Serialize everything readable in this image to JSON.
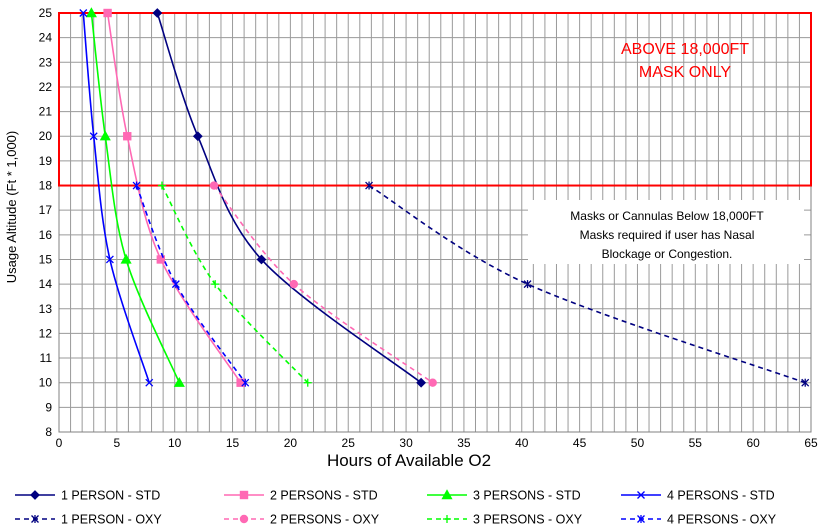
{
  "chart_data": {
    "type": "line",
    "title": "",
    "xlabel": "Hours of Available O2",
    "ylabel": "Usage Altitude (Ft * 1,000)",
    "xlim": [
      0,
      65
    ],
    "ylim": [
      8,
      25
    ],
    "x_ticks": [
      0,
      5,
      10,
      15,
      20,
      25,
      30,
      35,
      40,
      45,
      50,
      55,
      60,
      65
    ],
    "y_ticks": [
      8,
      9,
      10,
      11,
      12,
      13,
      14,
      15,
      16,
      17,
      18,
      19,
      20,
      21,
      22,
      23,
      24,
      25
    ],
    "grid": true,
    "legend_position": "bottom",
    "annotations": {
      "mask_only_line1": "ABOVE 18,000FT",
      "mask_only_line2": "MASK ONLY",
      "cannula_line1": "Masks or Cannulas Below 18,000FT",
      "cannula_line2": "Masks required if user has Nasal",
      "cannula_line3": "Blockage or Congestion."
    },
    "series": [
      {
        "name": "1 PERSON - STD",
        "color": "#000080",
        "dash": false,
        "marker": "diamond",
        "points": [
          [
            8.5,
            25
          ],
          [
            12,
            20
          ],
          [
            17.5,
            15
          ],
          [
            31.3,
            10
          ]
        ]
      },
      {
        "name": "2 PERSONS - STD",
        "color": "#ff69b4",
        "dash": false,
        "marker": "square",
        "points": [
          [
            4.2,
            25
          ],
          [
            5.9,
            20
          ],
          [
            8.8,
            15
          ],
          [
            15.7,
            10
          ]
        ]
      },
      {
        "name": "3 PERSONS - STD",
        "color": "#00ff00",
        "dash": false,
        "marker": "triangle",
        "points": [
          [
            2.8,
            25
          ],
          [
            4,
            20
          ],
          [
            5.8,
            15
          ],
          [
            10.4,
            10
          ]
        ]
      },
      {
        "name": "4 PERSONS - STD",
        "color": "#0000ff",
        "dash": false,
        "marker": "x",
        "points": [
          [
            2.1,
            25
          ],
          [
            3,
            20
          ],
          [
            4.4,
            15
          ],
          [
            7.8,
            10
          ]
        ]
      },
      {
        "name": "1 PERSON - OXY",
        "color": "#000080",
        "dash": true,
        "marker": "star",
        "points": [
          [
            26.8,
            18
          ],
          [
            40.5,
            14
          ],
          [
            64.5,
            10
          ]
        ]
      },
      {
        "name": "2 PERSONS - OXY",
        "color": "#ff69b4",
        "dash": true,
        "marker": "circle",
        "points": [
          [
            13.4,
            18
          ],
          [
            20.3,
            14
          ],
          [
            32.3,
            10
          ]
        ]
      },
      {
        "name": "3 PERSONS - OXY",
        "color": "#00ff00",
        "dash": true,
        "marker": "plus",
        "points": [
          [
            8.9,
            18
          ],
          [
            13.5,
            14
          ],
          [
            21.5,
            10
          ]
        ]
      },
      {
        "name": "4 PERSONS - OXY",
        "color": "#0000ff",
        "dash": true,
        "marker": "star",
        "points": [
          [
            6.7,
            18
          ],
          [
            10.1,
            14
          ],
          [
            16.1,
            10
          ]
        ]
      }
    ]
  }
}
